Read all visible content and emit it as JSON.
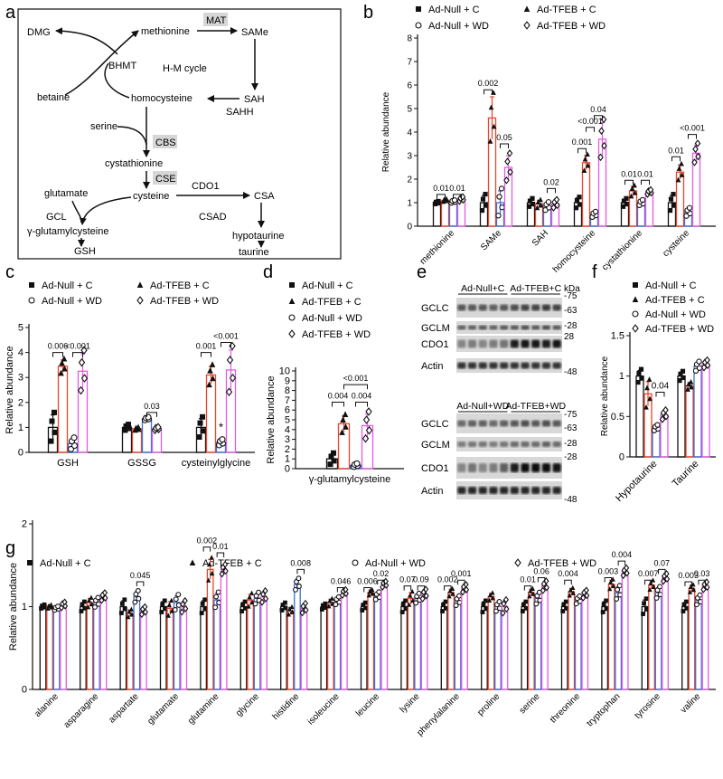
{
  "panel_letters": {
    "a": "a",
    "b": "b",
    "c": "c",
    "d": "d",
    "e": "e",
    "f": "f",
    "g": "g"
  },
  "colors": {
    "c1": "#111111",
    "c2": "#e8452c",
    "c3": "#3f6fd8",
    "c4": "#e35be3"
  },
  "pathway": {
    "nodes": {
      "dmg": "DMG",
      "betaine": "betaine",
      "bhmt": "BHMT",
      "methionine": "methionine",
      "mat": "MAT",
      "same": "SAMe",
      "hmcycle": "H-M cycle",
      "sah": "SAH",
      "sahh": "SAHH",
      "homocysteine": "homocysteine",
      "serine": "serine",
      "cbs": "CBS",
      "cystathionine": "cystathionine",
      "cse": "CSE",
      "glutamate": "glutamate",
      "cysteine": "cysteine",
      "cdo1": "CDO1",
      "csa": "CSA",
      "gcl": "GCL",
      "csad": "CSAD",
      "ggc": "γ-glutamylcysteine",
      "hypotaurine": "hypotaurine",
      "gsh": "GSH",
      "taurine": "taurine"
    }
  },
  "western": {
    "kda": "kDa",
    "top": {
      "groups": [
        "Ad-Null+C",
        "Ad-TFEB+C"
      ],
      "rows": [
        "GCLC",
        "GCLM",
        "CDO1",
        "Actin"
      ],
      "markers": [
        "-75",
        "-63",
        "-28",
        "28",
        "-48"
      ]
    },
    "bottom": {
      "groups": [
        "Ad-Null+WD",
        "Ad-TFEB+WD"
      ],
      "rows": [
        "GCLC",
        "GCLM",
        "CDO1",
        "Actin"
      ],
      "markers": [
        "-75",
        "-63",
        "-28",
        "-28",
        "-48"
      ]
    },
    "intensity": {
      "top": {
        "GCLC": [
          0.6,
          0.6,
          0.6,
          0.55,
          0.6,
          0.65,
          0.7,
          0.7,
          0.75,
          0.7
        ],
        "GCLM": [
          0.55,
          0.55,
          0.6,
          0.55,
          0.6,
          0.6,
          0.65,
          0.6,
          0.65,
          0.6
        ],
        "CDO1": [
          0.35,
          0.4,
          0.35,
          0.4,
          0.45,
          0.9,
          0.95,
          0.95,
          0.9,
          0.95
        ],
        "Actin": [
          0.8,
          0.8,
          0.8,
          0.8,
          0.8,
          0.8,
          0.8,
          0.8,
          0.8,
          0.8
        ]
      },
      "bottom": {
        "GCLC": [
          0.5,
          0.55,
          0.55,
          0.5,
          0.55,
          0.6,
          0.65,
          0.6,
          0.65,
          0.6
        ],
        "GCLM": [
          0.4,
          0.45,
          0.45,
          0.4,
          0.45,
          0.5,
          0.5,
          0.5,
          0.55,
          0.5
        ],
        "CDO1": [
          0.35,
          0.45,
          0.35,
          0.4,
          0.55,
          0.9,
          1.0,
          1.0,
          1.0,
          0.95
        ],
        "Actin": [
          0.85,
          0.85,
          0.85,
          0.85,
          0.85,
          0.85,
          0.85,
          0.85,
          0.85,
          0.85
        ]
      }
    }
  },
  "chart_data": [
    {
      "id": "b",
      "type": "bar",
      "ylabel": "Relative abundance",
      "ylim": [
        0,
        8
      ],
      "yticks": [
        0,
        1,
        2,
        3,
        4,
        5,
        6,
        7,
        8
      ],
      "legend": [
        "Ad-Null + C",
        "Ad-TFEB + C",
        "Ad-Null + WD",
        "Ad-TFEB + WD"
      ],
      "categories": [
        "methionine",
        "SAMe",
        "SAH",
        "homocysteine",
        "cystathionine",
        "cysteine"
      ],
      "series": [
        {
          "name": "Ad-Null + C",
          "values": [
            1.0,
            1.0,
            1.0,
            1.0,
            1.0,
            1.0
          ],
          "err": [
            0.05,
            0.3,
            0.15,
            0.2,
            0.15,
            0.3
          ]
        },
        {
          "name": "Ad-TFEB + C",
          "values": [
            1.1,
            4.6,
            0.95,
            2.7,
            1.5,
            2.3
          ],
          "err": [
            0.05,
            0.9,
            0.15,
            0.3,
            0.2,
            0.3
          ]
        },
        {
          "name": "Ad-Null + WD",
          "values": [
            1.05,
            1.0,
            0.85,
            0.5,
            1.0,
            0.6
          ],
          "err": [
            0.05,
            0.5,
            0.15,
            0.1,
            0.1,
            0.15
          ]
        },
        {
          "name": "Ad-TFEB + WD",
          "values": [
            1.15,
            2.5,
            0.95,
            3.7,
            1.45,
            3.1
          ],
          "err": [
            0.08,
            0.5,
            0.15,
            0.7,
            0.08,
            0.35
          ]
        }
      ],
      "annotations": [
        {
          "label": "0.01",
          "cat": 0,
          "from": 0,
          "to": 1,
          "y": 1.35
        },
        {
          "label": "0.01",
          "cat": 0,
          "from": 2,
          "to": 3,
          "y": 1.35
        },
        {
          "label": "0.002",
          "cat": 1,
          "from": 0,
          "to": 1,
          "y": 5.8
        },
        {
          "label": "0.05",
          "cat": 1,
          "from": 2,
          "to": 3,
          "y": 3.5
        },
        {
          "label": "0.02",
          "cat": 2,
          "from": 2,
          "to": 3,
          "y": 1.6
        },
        {
          "label": "0.001",
          "cat": 3,
          "from": 0,
          "to": 1,
          "y": 3.3
        },
        {
          "label": "<0.001",
          "cat": 3,
          "from": 1,
          "to": 2,
          "y": 4.2
        },
        {
          "label": "0.04",
          "cat": 3,
          "from": 2,
          "to": 3,
          "y": 4.7
        },
        {
          "label": "0.01",
          "cat": 4,
          "from": 0,
          "to": 1,
          "y": 1.95
        },
        {
          "label": "0.01",
          "cat": 4,
          "from": 2,
          "to": 3,
          "y": 1.95
        },
        {
          "label": "0.01",
          "cat": 5,
          "from": 0,
          "to": 1,
          "y": 2.95
        },
        {
          "label": "<0.001",
          "cat": 5,
          "from": 2,
          "to": 3,
          "y": 3.9
        }
      ]
    },
    {
      "id": "c",
      "type": "bar",
      "ylabel": "Relative abundance",
      "ylim": [
        0,
        5
      ],
      "yticks": [
        0,
        1,
        2,
        3,
        4,
        5
      ],
      "legend": [
        "Ad-Null + C",
        "Ad-TFEB + C",
        "Ad-Null + WD",
        "Ad-TFEB + WD"
      ],
      "categories": [
        "GSH",
        "GSSG",
        "cysteinylglycine"
      ],
      "series": [
        {
          "name": "Ad-Null + C",
          "values": [
            1.0,
            1.0,
            1.0
          ],
          "err": [
            0.5,
            0.1,
            0.35
          ]
        },
        {
          "name": "Ad-TFEB + C",
          "values": [
            3.45,
            0.95,
            3.1
          ],
          "err": [
            0.25,
            0.05,
            0.35
          ]
        },
        {
          "name": "Ad-Null + WD",
          "values": [
            0.35,
            1.35,
            0.4
          ],
          "err": [
            0.2,
            0.05,
            0.1
          ]
        },
        {
          "name": "Ad-TFEB + WD",
          "values": [
            3.25,
            0.95,
            3.3
          ],
          "err": [
            0.7,
            0.05,
            0.8
          ]
        }
      ],
      "annotations": [
        {
          "label": "0.006",
          "cat": 0,
          "from": 0,
          "to": 1,
          "y": 4.0
        },
        {
          "label": "<0.001",
          "cat": 0,
          "from": 2,
          "to": 3,
          "y": 4.0
        },
        {
          "label": "0.03",
          "cat": 1,
          "from": 2,
          "to": 3,
          "y": 1.6
        },
        {
          "label": "0.001",
          "cat": 2,
          "from": 0,
          "to": 1,
          "y": 4.0
        },
        {
          "label": "<0.001",
          "cat": 2,
          "from": 2,
          "to": 3,
          "y": 4.4
        }
      ],
      "marks": [
        {
          "label": "*",
          "cat": 2,
          "series": 2,
          "y": 0.85
        }
      ]
    },
    {
      "id": "d",
      "type": "bar",
      "ylabel": "Relative abundance",
      "ylim": [
        0,
        10
      ],
      "yticks": [
        0,
        1,
        2,
        3,
        4,
        5,
        6,
        7,
        8,
        9,
        10
      ],
      "legend": [
        "Ad-Null + C",
        "Ad-TFEB + C",
        "Ad-Null + WD",
        "Ad-TFEB + WD"
      ],
      "categories": [
        "γ-glutamylcysteine"
      ],
      "series": [
        {
          "name": "Ad-Null + C",
          "values": [
            1.0
          ],
          "err": [
            0.5
          ]
        },
        {
          "name": "Ad-TFEB + C",
          "values": [
            4.6
          ],
          "err": [
            0.8
          ]
        },
        {
          "name": "Ad-Null + WD",
          "values": [
            0.35
          ],
          "err": [
            0.15
          ]
        },
        {
          "name": "Ad-TFEB + WD",
          "values": [
            4.4
          ],
          "err": [
            1.2
          ]
        }
      ],
      "annotations": [
        {
          "label": "0.004",
          "cat": 0,
          "from": 0,
          "to": 1,
          "y": 6.8
        },
        {
          "label": "0.004",
          "cat": 0,
          "from": 2,
          "to": 3,
          "y": 6.8
        },
        {
          "label": "<0.001",
          "cat": 0,
          "from": 1,
          "to": 3,
          "y": 8.6
        }
      ]
    },
    {
      "id": "f",
      "type": "bar",
      "ylabel": "Relative abundance",
      "ylim": [
        0,
        1.5
      ],
      "yticks": [
        0,
        0.5,
        1.0,
        1.5
      ],
      "legend": [
        "Ad-Null + C",
        "Ad-TFEB + C",
        "Ad-Null + WD",
        "Ad-TFEB + WD"
      ],
      "categories": [
        "Hypotaurine",
        "Taurine"
      ],
      "series": [
        {
          "name": "Ad-Null + C",
          "values": [
            1.0,
            1.0
          ],
          "err": [
            0.07,
            0.05
          ]
        },
        {
          "name": "Ad-TFEB + C",
          "values": [
            0.78,
            0.88
          ],
          "err": [
            0.15,
            0.04
          ]
        },
        {
          "name": "Ad-Null + WD",
          "values": [
            0.36,
            1.12
          ],
          "err": [
            0.03,
            0.05
          ]
        },
        {
          "name": "Ad-TFEB + WD",
          "values": [
            0.52,
            1.15
          ],
          "err": [
            0.05,
            0.04
          ]
        }
      ],
      "annotations": [
        {
          "label": "0.04",
          "cat": 0,
          "from": 2,
          "to": 3,
          "y": 0.8
        }
      ]
    },
    {
      "id": "g",
      "type": "bar",
      "ylabel": "Relative abundance",
      "ylim": [
        0,
        2
      ],
      "yticks": [
        0,
        1,
        2
      ],
      "legend": [
        "Ad-Null + C",
        "Ad-TFEB + C",
        "Ad-Null + WD",
        "Ad-TFEB + WD"
      ],
      "categories": [
        "alanine",
        "asparagine",
        "aspartate",
        "glutamate",
        "glutamine",
        "glycine",
        "histidine",
        "isoleucine",
        "leucine",
        "lysine",
        "phenylalanine",
        "proline",
        "serine",
        "threonine",
        "tryptophan",
        "tyrosine",
        "valine"
      ],
      "series": [
        {
          "name": "Ad-Null + C",
          "values": [
            1.0,
            1.0,
            1.0,
            1.0,
            1.0,
            1.0,
            1.0,
            1.0,
            1.0,
            1.0,
            1.0,
            1.0,
            1.0,
            1.0,
            1.0,
            1.0,
            1.0
          ],
          "err": [
            0.02,
            0.05,
            0.07,
            0.06,
            0.07,
            0.05,
            0.04,
            0.03,
            0.04,
            0.06,
            0.05,
            0.06,
            0.05,
            0.05,
            0.06,
            0.08,
            0.05
          ]
        },
        {
          "name": "Ad-TFEB + C",
          "values": [
            1.0,
            1.05,
            0.92,
            0.98,
            1.45,
            1.08,
            0.95,
            1.05,
            1.17,
            1.1,
            1.17,
            1.12,
            1.17,
            1.18,
            1.27,
            1.26,
            1.22
          ],
          "err": [
            0.02,
            0.05,
            0.04,
            0.08,
            0.12,
            0.07,
            0.04,
            0.04,
            0.03,
            0.07,
            0.04,
            0.04,
            0.04,
            0.04,
            0.05,
            0.05,
            0.04
          ]
        },
        {
          "name": "Ad-Null + WD",
          "values": [
            0.98,
            1.05,
            1.12,
            1.05,
            1.08,
            1.1,
            1.27,
            1.07,
            1.13,
            1.1,
            1.07,
            1.0,
            1.1,
            1.08,
            1.17,
            1.17,
            1.08
          ],
          "err": [
            0.02,
            0.05,
            0.06,
            0.08,
            0.08,
            0.06,
            0.06,
            0.04,
            0.04,
            0.05,
            0.05,
            0.05,
            0.06,
            0.04,
            0.07,
            0.06,
            0.05
          ]
        },
        {
          "name": "Ad-TFEB + WD",
          "values": [
            1.02,
            1.12,
            0.95,
            1.0,
            1.45,
            1.12,
            0.98,
            1.17,
            1.27,
            1.15,
            1.22,
            1.0,
            1.25,
            1.15,
            1.42,
            1.35,
            1.25
          ],
          "err": [
            0.03,
            0.04,
            0.04,
            0.06,
            0.05,
            0.06,
            0.05,
            0.03,
            0.03,
            0.05,
            0.04,
            0.07,
            0.05,
            0.04,
            0.04,
            0.04,
            0.04
          ]
        }
      ],
      "annotations": [
        {
          "label": "0.045",
          "cat": 2,
          "from": 2,
          "to": 3,
          "y": 1.3
        },
        {
          "label": "0.002",
          "cat": 4,
          "from": 0,
          "to": 1,
          "y": 1.72
        },
        {
          "label": "0.01",
          "cat": 4,
          "from": 2,
          "to": 3,
          "y": 1.65
        },
        {
          "label": "0.008",
          "cat": 6,
          "from": 2,
          "to": 3,
          "y": 1.45
        },
        {
          "label": "0.046",
          "cat": 7,
          "from": 2,
          "to": 3,
          "y": 1.23
        },
        {
          "label": "0.006",
          "cat": 8,
          "from": 0,
          "to": 1,
          "y": 1.23
        },
        {
          "label": "0.02",
          "cat": 8,
          "from": 2,
          "to": 3,
          "y": 1.32
        },
        {
          "label": "0.07",
          "cat": 9,
          "from": 0,
          "to": 1,
          "y": 1.25
        },
        {
          "label": "0.09",
          "cat": 9,
          "from": 2,
          "to": 3,
          "y": 1.25
        },
        {
          "label": "0.002",
          "cat": 10,
          "from": 0,
          "to": 1,
          "y": 1.25
        },
        {
          "label": "0.001",
          "cat": 10,
          "from": 2,
          "to": 3,
          "y": 1.32
        },
        {
          "label": "0.01",
          "cat": 12,
          "from": 0,
          "to": 1,
          "y": 1.25
        },
        {
          "label": "0.06",
          "cat": 12,
          "from": 2,
          "to": 3,
          "y": 1.35
        },
        {
          "label": "0.004",
          "cat": 13,
          "from": 0,
          "to": 1,
          "y": 1.32
        },
        {
          "label": "0.003",
          "cat": 14,
          "from": 0,
          "to": 1,
          "y": 1.35
        },
        {
          "label": "0.004",
          "cat": 14,
          "from": 2,
          "to": 3,
          "y": 1.55
        },
        {
          "label": "0.007",
          "cat": 15,
          "from": 0,
          "to": 1,
          "y": 1.32
        },
        {
          "label": "0.07",
          "cat": 15,
          "from": 2,
          "to": 3,
          "y": 1.45
        },
        {
          "label": "0.003",
          "cat": 16,
          "from": 0,
          "to": 1,
          "y": 1.3
        },
        {
          "label": "0.03",
          "cat": 16,
          "from": 2,
          "to": 3,
          "y": 1.32
        }
      ]
    }
  ]
}
